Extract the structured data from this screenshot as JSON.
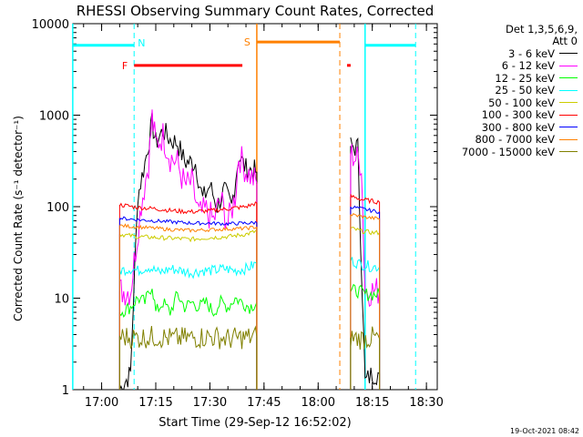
{
  "chart_data": {
    "type": "line",
    "title": "RHESSI Observing Summary Count Rates, Corrected",
    "xlabel": "Start Time (29-Sep-12 16:52:02)",
    "ylabel": "Corrected Count Rate (s⁻¹ detector⁻¹)",
    "yscale": "log",
    "ylim": [
      1,
      10000
    ],
    "xlim": [
      "16:52:02",
      "18:33:00"
    ],
    "x_tick_labels": [
      "17:00",
      "17:15",
      "17:30",
      "17:45",
      "18:00",
      "18:15",
      "18:30"
    ],
    "y_tick_labels": [
      "1",
      "10",
      "100",
      "1000",
      "10000"
    ],
    "legend_header": [
      "Det 1,3,5,6,9,",
      "Att 0"
    ],
    "legend_position": "right",
    "footer_date": "19-Oct-2021 08:42",
    "flags": [
      {
        "label": "N",
        "color": "#00ffff",
        "x": "17:09"
      },
      {
        "label": "F",
        "color": "#ff0000",
        "x_start": "17:09",
        "x_end": "17:39",
        "level": 3500
      },
      {
        "label": "S",
        "color": "#ff8000",
        "x_start": "17:43",
        "x_end": "18:06",
        "level": 6300
      }
    ],
    "night_bars": [
      {
        "x_start": "16:52",
        "x_end": "17:09",
        "level": 5800,
        "color": "#00ffff"
      },
      {
        "x_start": "18:13",
        "x_end": "18:27",
        "level": 5800,
        "color": "#00ffff"
      }
    ],
    "series": [
      {
        "name": "3 - 6 keV",
        "color": "#000000",
        "segments": [
          [
            [
              "17:05",
              1.0
            ],
            [
              "17:08",
              1.5
            ],
            [
              "17:10",
              130
            ],
            [
              "17:12",
              300
            ],
            [
              "17:14",
              820
            ],
            [
              "17:15",
              500
            ],
            [
              "17:17",
              680
            ],
            [
              "17:19",
              540
            ],
            [
              "17:21",
              500
            ],
            [
              "17:23",
              310
            ],
            [
              "17:26",
              300
            ],
            [
              "17:28",
              120
            ],
            [
              "17:30",
              170
            ],
            [
              "17:32",
              100
            ],
            [
              "17:34",
              150
            ],
            [
              "17:36",
              100
            ],
            [
              "17:38",
              360
            ],
            [
              "17:40",
              260
            ],
            [
              "17:42",
              250
            ],
            [
              "17:43",
              240
            ]
          ],
          [
            [
              "18:09",
              460
            ],
            [
              "18:11",
              440
            ],
            [
              "18:13",
              1.2
            ],
            [
              "18:15",
              1.5
            ],
            [
              "18:17",
              1.5
            ]
          ]
        ]
      },
      {
        "name": "6 - 12 keV",
        "color": "#ff00ff",
        "segments": [
          [
            [
              "17:05",
              12
            ],
            [
              "17:08",
              12
            ],
            [
              "17:09",
              25
            ],
            [
              "17:11",
              110
            ],
            [
              "17:13",
              300
            ],
            [
              "17:14",
              950
            ],
            [
              "17:15",
              480
            ],
            [
              "17:17",
              600
            ],
            [
              "17:19",
              350
            ],
            [
              "17:21",
              300
            ],
            [
              "17:23",
              170
            ],
            [
              "17:25",
              180
            ],
            [
              "17:27",
              80
            ],
            [
              "17:29",
              90
            ],
            [
              "17:31",
              70
            ],
            [
              "17:33",
              120
            ],
            [
              "17:35",
              65
            ],
            [
              "17:37",
              130
            ],
            [
              "17:38",
              370
            ],
            [
              "17:40",
              250
            ],
            [
              "17:42",
              200
            ],
            [
              "17:43",
              180
            ]
          ],
          [
            [
              "18:09",
              380
            ],
            [
              "18:10",
              350
            ],
            [
              "18:12",
              300
            ],
            [
              "18:13",
              12
            ],
            [
              "18:15",
              12
            ],
            [
              "18:17",
              12
            ]
          ]
        ]
      },
      {
        "name": "12 - 25 keV",
        "color": "#00ff00",
        "segments": [
          [
            [
              "17:05",
              7
            ],
            [
              "17:08",
              8
            ],
            [
              "17:10",
              10
            ],
            [
              "17:12",
              9
            ],
            [
              "17:14",
              14
            ],
            [
              "17:15",
              7
            ],
            [
              "17:17",
              9
            ],
            [
              "17:19",
              7
            ],
            [
              "17:21",
              11
            ],
            [
              "17:23",
              8
            ],
            [
              "17:25",
              9
            ],
            [
              "17:27",
              8
            ],
            [
              "17:29",
              9
            ],
            [
              "17:31",
              7
            ],
            [
              "17:33",
              9
            ],
            [
              "17:35",
              8
            ],
            [
              "17:37",
              10
            ],
            [
              "17:39",
              9
            ],
            [
              "17:41",
              8
            ],
            [
              "17:43",
              9
            ]
          ],
          [
            [
              "18:09",
              12
            ],
            [
              "18:11",
              12
            ],
            [
              "18:13",
              11
            ],
            [
              "18:15",
              11
            ],
            [
              "18:17",
              11
            ]
          ]
        ]
      },
      {
        "name": "25 - 50 keV",
        "color": "#00ffff",
        "segments": [
          [
            [
              "17:05",
              20
            ],
            [
              "17:08",
              21
            ],
            [
              "17:10",
              20
            ],
            [
              "17:13",
              22
            ],
            [
              "17:16",
              19
            ],
            [
              "17:19",
              21
            ],
            [
              "17:22",
              20
            ],
            [
              "17:25",
              19
            ],
            [
              "17:28",
              20
            ],
            [
              "17:31",
              20
            ],
            [
              "17:34",
              21
            ],
            [
              "17:37",
              20
            ],
            [
              "17:40",
              21
            ],
            [
              "17:43",
              24
            ]
          ],
          [
            [
              "18:09",
              26
            ],
            [
              "18:11",
              24
            ],
            [
              "18:13",
              23
            ],
            [
              "18:15",
              22
            ],
            [
              "18:17",
              22
            ]
          ]
        ]
      },
      {
        "name": "50 - 100 keV",
        "color": "#cccc00",
        "segments": [
          [
            [
              "17:05",
              50
            ],
            [
              "17:10",
              47
            ],
            [
              "17:15",
              46
            ],
            [
              "17:20",
              45
            ],
            [
              "17:25",
              44
            ],
            [
              "17:30",
              46
            ],
            [
              "17:35",
              47
            ],
            [
              "17:40",
              50
            ],
            [
              "17:43",
              54
            ]
          ],
          [
            [
              "18:09",
              58
            ],
            [
              "18:12",
              54
            ],
            [
              "18:15",
              52
            ],
            [
              "18:17",
              52
            ]
          ]
        ]
      },
      {
        "name": "100 - 300 keV",
        "color": "#ff0000",
        "segments": [
          [
            [
              "17:05",
              105
            ],
            [
              "17:10",
              98
            ],
            [
              "17:15",
              95
            ],
            [
              "17:20",
              90
            ],
            [
              "17:25",
              88
            ],
            [
              "17:30",
              90
            ],
            [
              "17:35",
              95
            ],
            [
              "17:40",
              100
            ],
            [
              "17:43",
              110
            ]
          ],
          [
            [
              "18:09",
              130
            ],
            [
              "18:12",
              120
            ],
            [
              "18:15",
              115
            ],
            [
              "18:17",
              112
            ]
          ]
        ]
      },
      {
        "name": "300 - 800 keV",
        "color": "#0000ff",
        "segments": [
          [
            [
              "17:05",
              75
            ],
            [
              "17:10",
              72
            ],
            [
              "17:15",
              70
            ],
            [
              "17:20",
              68
            ],
            [
              "17:25",
              66
            ],
            [
              "17:30",
              66
            ],
            [
              "17:35",
              65
            ],
            [
              "17:40",
              66
            ],
            [
              "17:43",
              67
            ]
          ],
          [
            [
              "18:09",
              100
            ],
            [
              "18:12",
              95
            ],
            [
              "18:15",
              90
            ],
            [
              "18:17",
              88
            ]
          ]
        ]
      },
      {
        "name": "800 - 7000 keV",
        "color": "#ff8000",
        "segments": [
          [
            [
              "17:05",
              62
            ],
            [
              "17:10",
              60
            ],
            [
              "17:15",
              58
            ],
            [
              "17:20",
              56
            ],
            [
              "17:25",
              55
            ],
            [
              "17:30",
              56
            ],
            [
              "17:35",
              57
            ],
            [
              "17:40",
              58
            ],
            [
              "17:43",
              60
            ]
          ],
          [
            [
              "18:09",
              82
            ],
            [
              "18:12",
              78
            ],
            [
              "18:15",
              75
            ],
            [
              "18:17",
              74
            ]
          ]
        ]
      },
      {
        "name": "7000 - 15000 keV",
        "color": "#808000",
        "segments": [
          [
            [
              "17:05",
              3.8
            ],
            [
              "17:10",
              3.7
            ],
            [
              "17:15",
              3.8
            ],
            [
              "17:20",
              3.6
            ],
            [
              "17:25",
              3.7
            ],
            [
              "17:30",
              3.8
            ],
            [
              "17:35",
              3.6
            ],
            [
              "17:40",
              3.7
            ],
            [
              "17:43",
              3.8
            ]
          ],
          [
            [
              "18:09",
              3.7
            ],
            [
              "18:12",
              3.6
            ],
            [
              "18:15",
              3.7
            ],
            [
              "18:17",
              3.6
            ]
          ]
        ]
      }
    ]
  }
}
